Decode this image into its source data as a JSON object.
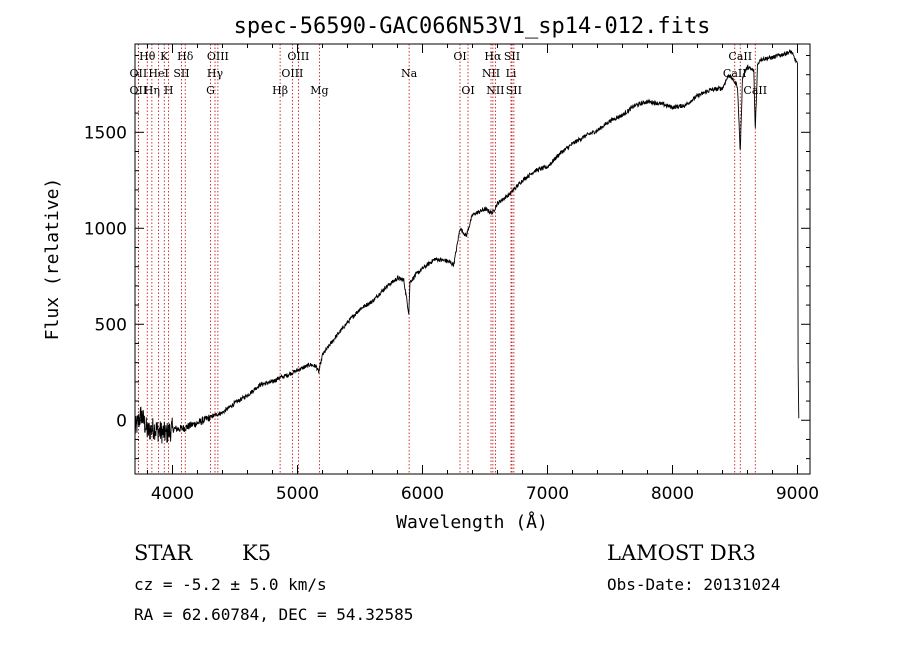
{
  "chart_data": {
    "type": "line",
    "title": "spec-56590-GAC066N53V1_sp14-012.fits",
    "xlabel": "Wavelength (Å)",
    "ylabel": "Flux (relative)",
    "xlim": [
      3700,
      9100
    ],
    "ylim": [
      -280,
      1960
    ],
    "x_ticks": [
      4000,
      5000,
      6000,
      7000,
      8000,
      9000
    ],
    "x_tick_labels": [
      "4000",
      "5000",
      "6000",
      "7000",
      "8000",
      "9000"
    ],
    "y_ticks": [
      0,
      500,
      1000,
      1500
    ],
    "y_tick_labels": [
      "0",
      "500",
      "1000",
      "1500"
    ],
    "grid": false,
    "series": [
      {
        "name": "spectrum",
        "x": [
          3700,
          3750,
          3800,
          3850,
          3900,
          3950,
          4000,
          4050,
          4100,
          4150,
          4200,
          4250,
          4300,
          4350,
          4400,
          4500,
          4600,
          4700,
          4800,
          4850,
          4900,
          5000,
          5100,
          5150,
          5170,
          5200,
          5300,
          5400,
          5500,
          5600,
          5700,
          5800,
          5850,
          5890,
          5900,
          5950,
          6000,
          6100,
          6200,
          6250,
          6300,
          6350,
          6400,
          6500,
          6560,
          6600,
          6700,
          6800,
          6900,
          7000,
          7100,
          7200,
          7300,
          7400,
          7500,
          7600,
          7700,
          7800,
          7900,
          8000,
          8100,
          8200,
          8300,
          8400,
          8450,
          8500,
          8520,
          8542,
          8560,
          8600,
          8650,
          8662,
          8680,
          8700,
          8800,
          8900,
          8950,
          8980,
          9000,
          9005,
          9010
        ],
        "y": [
          -50,
          30,
          -60,
          -40,
          -60,
          -70,
          -45,
          -45,
          -40,
          -25,
          -15,
          0,
          15,
          30,
          40,
          90,
          130,
          185,
          200,
          220,
          230,
          260,
          290,
          280,
          250,
          340,
          430,
          510,
          580,
          620,
          690,
          740,
          730,
          560,
          720,
          760,
          790,
          840,
          830,
          810,
          1000,
          960,
          1070,
          1100,
          1080,
          1130,
          1180,
          1250,
          1300,
          1320,
          1390,
          1440,
          1480,
          1510,
          1560,
          1590,
          1640,
          1660,
          1650,
          1630,
          1640,
          1690,
          1720,
          1730,
          1800,
          1760,
          1740,
          1390,
          1790,
          1840,
          1820,
          1510,
          1850,
          1880,
          1890,
          1910,
          1920,
          1880,
          1860,
          300,
          10
        ]
      }
    ],
    "lines": [
      {
        "label": "Hθ",
        "x": 3798,
        "row": 0
      },
      {
        "label": "OII",
        "x": 3727,
        "row": 1
      },
      {
        "label": "OII",
        "x": 3727,
        "row": 2
      },
      {
        "label": "Hη",
        "x": 3835,
        "row": 2
      },
      {
        "label": "HeI",
        "x": 3889,
        "row": 1
      },
      {
        "label": "K",
        "x": 3934,
        "row": 0
      },
      {
        "label": "H",
        "x": 3969,
        "row": 2
      },
      {
        "label": "SII",
        "x": 4072,
        "row": 1
      },
      {
        "label": "Hδ",
        "x": 4102,
        "row": 0
      },
      {
        "label": "OIII",
        "x": 4363,
        "row": 0
      },
      {
        "label": "Hγ",
        "x": 4340,
        "row": 1
      },
      {
        "label": "G",
        "x": 4304,
        "row": 2
      },
      {
        "label": "Hβ",
        "x": 4861,
        "row": 2
      },
      {
        "label": "OIII",
        "x": 5007,
        "row": 0
      },
      {
        "label": "OIII",
        "x": 4959,
        "row": 1
      },
      {
        "label": "Mg",
        "x": 5175,
        "row": 2
      },
      {
        "label": "Na",
        "x": 5893,
        "row": 1
      },
      {
        "label": "OI",
        "x": 6300,
        "row": 0
      },
      {
        "label": "OI",
        "x": 6364,
        "row": 2
      },
      {
        "label": "Hα",
        "x": 6563,
        "row": 0
      },
      {
        "label": "NII",
        "x": 6548,
        "row": 1
      },
      {
        "label": "NII",
        "x": 6583,
        "row": 2
      },
      {
        "label": "SII",
        "x": 6716,
        "row": 0
      },
      {
        "label": "Li",
        "x": 6708,
        "row": 1
      },
      {
        "label": "SII",
        "x": 6731,
        "row": 2
      },
      {
        "label": "CaII",
        "x": 8542,
        "row": 0
      },
      {
        "label": "CaII",
        "x": 8498,
        "row": 1
      },
      {
        "label": "CaII",
        "x": 8662,
        "row": 2
      }
    ]
  },
  "info": {
    "object_class": "STAR",
    "subclass": "K5",
    "survey": "LAMOST DR3",
    "redshift_line": "cz = -5.2 ± 5.0 km/s",
    "obs_date": "Obs-Date: 20131024",
    "coords": "RA =  62.60784, DEC =  54.32585"
  },
  "colors": {
    "axis": "#000000",
    "spectrum": "#000000",
    "line_marker": "#c00000"
  }
}
